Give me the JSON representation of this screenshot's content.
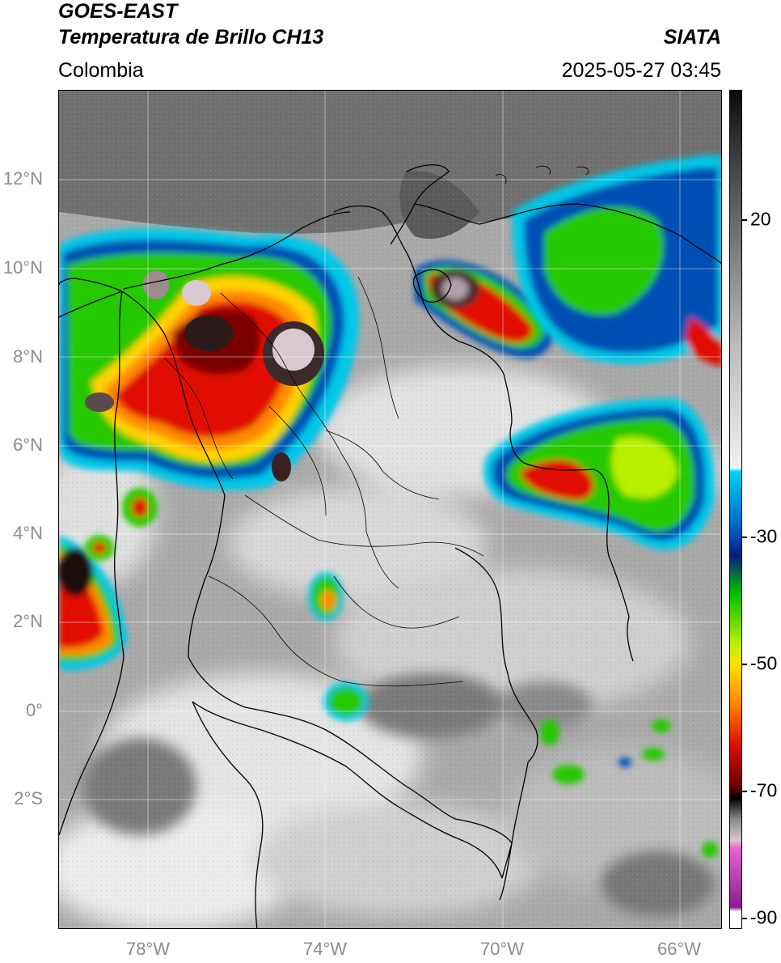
{
  "header": {
    "satellite": "GOES-EAST",
    "product": "Temperatura de Brillo CH13",
    "brand": "SIATA",
    "region": "Colombia",
    "timestamp": "2025-05-27 03:45"
  },
  "map": {
    "lat_labels": [
      "12°N",
      "10°N",
      "8°N",
      "6°N",
      "4°N",
      "2°N",
      "0°",
      "2°S"
    ],
    "lon_labels": [
      "78°W",
      "74°W",
      "70°W",
      "66°W"
    ]
  },
  "colorbar": {
    "tick_labels": [
      "20",
      "-30",
      "-50",
      "-70",
      "-90"
    ],
    "stops": [
      {
        "color": "#0a0a0a",
        "pos": 0
      },
      {
        "color": "#4a4a4a",
        "pos": 0.1
      },
      {
        "color": "#b9b9b9",
        "pos": 0.3
      },
      {
        "color": "#f0f0f0",
        "pos": 0.45
      },
      {
        "color": "#ffffff",
        "pos": 0.45
      },
      {
        "color": "#00d2f0",
        "pos": 0.455
      },
      {
        "color": "#0064c8",
        "pos": 0.52
      },
      {
        "color": "#0a1a80",
        "pos": 0.555
      },
      {
        "color": "#00c000",
        "pos": 0.6
      },
      {
        "color": "#b8f000",
        "pos": 0.66
      },
      {
        "color": "#ffe000",
        "pos": 0.685
      },
      {
        "color": "#ff8a00",
        "pos": 0.73
      },
      {
        "color": "#e01000",
        "pos": 0.78
      },
      {
        "color": "#6a0000",
        "pos": 0.83
      },
      {
        "color": "#000000",
        "pos": 0.845
      },
      {
        "color": "#8a8a8a",
        "pos": 0.87
      },
      {
        "color": "#d8c8cf",
        "pos": 0.895
      },
      {
        "color": "#e264cf",
        "pos": 0.905
      },
      {
        "color": "#8a1e90",
        "pos": 0.975
      },
      {
        "color": "#ffffff",
        "pos": 0.98
      }
    ]
  },
  "colors": {
    "cold_core": "#2a1a1a",
    "red": "#e01000",
    "orange": "#ff8a00",
    "green": "#28c800",
    "blue": "#0050b4",
    "cyan": "#00c8e8",
    "sea": "#6b6b6b",
    "land": "#b4b4b4"
  }
}
